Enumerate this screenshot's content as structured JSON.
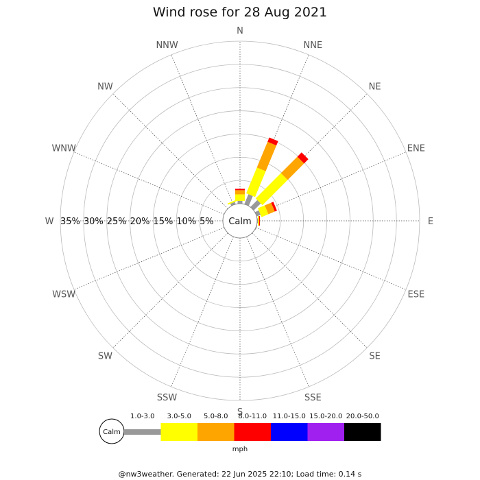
{
  "chart_data": {
    "type": "wind-rose",
    "title": "Wind rose for 28 Aug 2021",
    "center_label": "Calm",
    "directions": [
      "N",
      "NNE",
      "NE",
      "ENE",
      "E",
      "ESE",
      "SE",
      "SSE",
      "S",
      "SSW",
      "SW",
      "WSW",
      "W",
      "WNW",
      "NW",
      "NNW"
    ],
    "ring_labels": [
      "35%",
      "30%",
      "25%",
      "20%",
      "15%",
      "10%",
      "5%"
    ],
    "ring_values": [
      5,
      10,
      15,
      20,
      25,
      30,
      35
    ],
    "max_percent": 35,
    "speed_bins": [
      {
        "label": "1.0-3.0",
        "color": "#999999"
      },
      {
        "label": "3.0-5.0",
        "color": "#ffff00"
      },
      {
        "label": "5.0-8.0",
        "color": "#ffa500"
      },
      {
        "label": "8.0-11.0",
        "color": "#ff0000"
      },
      {
        "label": "11.0-15.0",
        "color": "#0000ff"
      },
      {
        "label": "15.0-20.0",
        "color": "#a020f0"
      },
      {
        "label": "20.0-50.0",
        "color": "#000000"
      }
    ],
    "units": "mph",
    "sectors": [
      {
        "dir": "N",
        "values": [
          0.6,
          1.4,
          0.9,
          0.3,
          0,
          0,
          0
        ]
      },
      {
        "dir": "NNE",
        "values": [
          2.3,
          6.0,
          6.0,
          1.0,
          0,
          0,
          0
        ]
      },
      {
        "dir": "NE",
        "values": [
          2.1,
          7.7,
          5.0,
          1.3,
          0,
          0,
          0
        ]
      },
      {
        "dir": "ENE",
        "values": [
          0.9,
          1.6,
          1.5,
          0.5,
          0,
          0,
          0
        ]
      },
      {
        "dir": "E",
        "values": [
          0.15,
          0.15,
          0.15,
          0.15,
          0,
          0,
          0
        ]
      },
      {
        "dir": "ESE",
        "values": [
          0.15,
          0,
          0,
          0,
          0,
          0,
          0
        ]
      },
      {
        "dir": "SE",
        "values": [
          0,
          0,
          0,
          0,
          0,
          0,
          0
        ]
      },
      {
        "dir": "SSE",
        "values": [
          0,
          0,
          0,
          0,
          0,
          0,
          0
        ]
      },
      {
        "dir": "S",
        "values": [
          0,
          0,
          0,
          0,
          0,
          0,
          0
        ]
      },
      {
        "dir": "SSW",
        "values": [
          0,
          0,
          0,
          0,
          0,
          0,
          0
        ]
      },
      {
        "dir": "SW",
        "values": [
          0,
          0,
          0,
          0,
          0,
          0,
          0
        ]
      },
      {
        "dir": "WSW",
        "values": [
          0,
          0,
          0,
          0,
          0,
          0,
          0
        ]
      },
      {
        "dir": "W",
        "values": [
          0,
          0,
          0,
          0,
          0,
          0,
          0
        ]
      },
      {
        "dir": "WNW",
        "values": [
          0,
          0,
          0,
          0,
          0,
          0,
          0
        ]
      },
      {
        "dir": "NW",
        "values": [
          0,
          0,
          0,
          0,
          0,
          0,
          0
        ]
      },
      {
        "dir": "NNW",
        "values": [
          0.5,
          0.3,
          0,
          0,
          0,
          0,
          0
        ]
      }
    ]
  },
  "footer": "@nw3weather. Generated: 22 Jun 2025 22:10; Load time: 0.14 s"
}
